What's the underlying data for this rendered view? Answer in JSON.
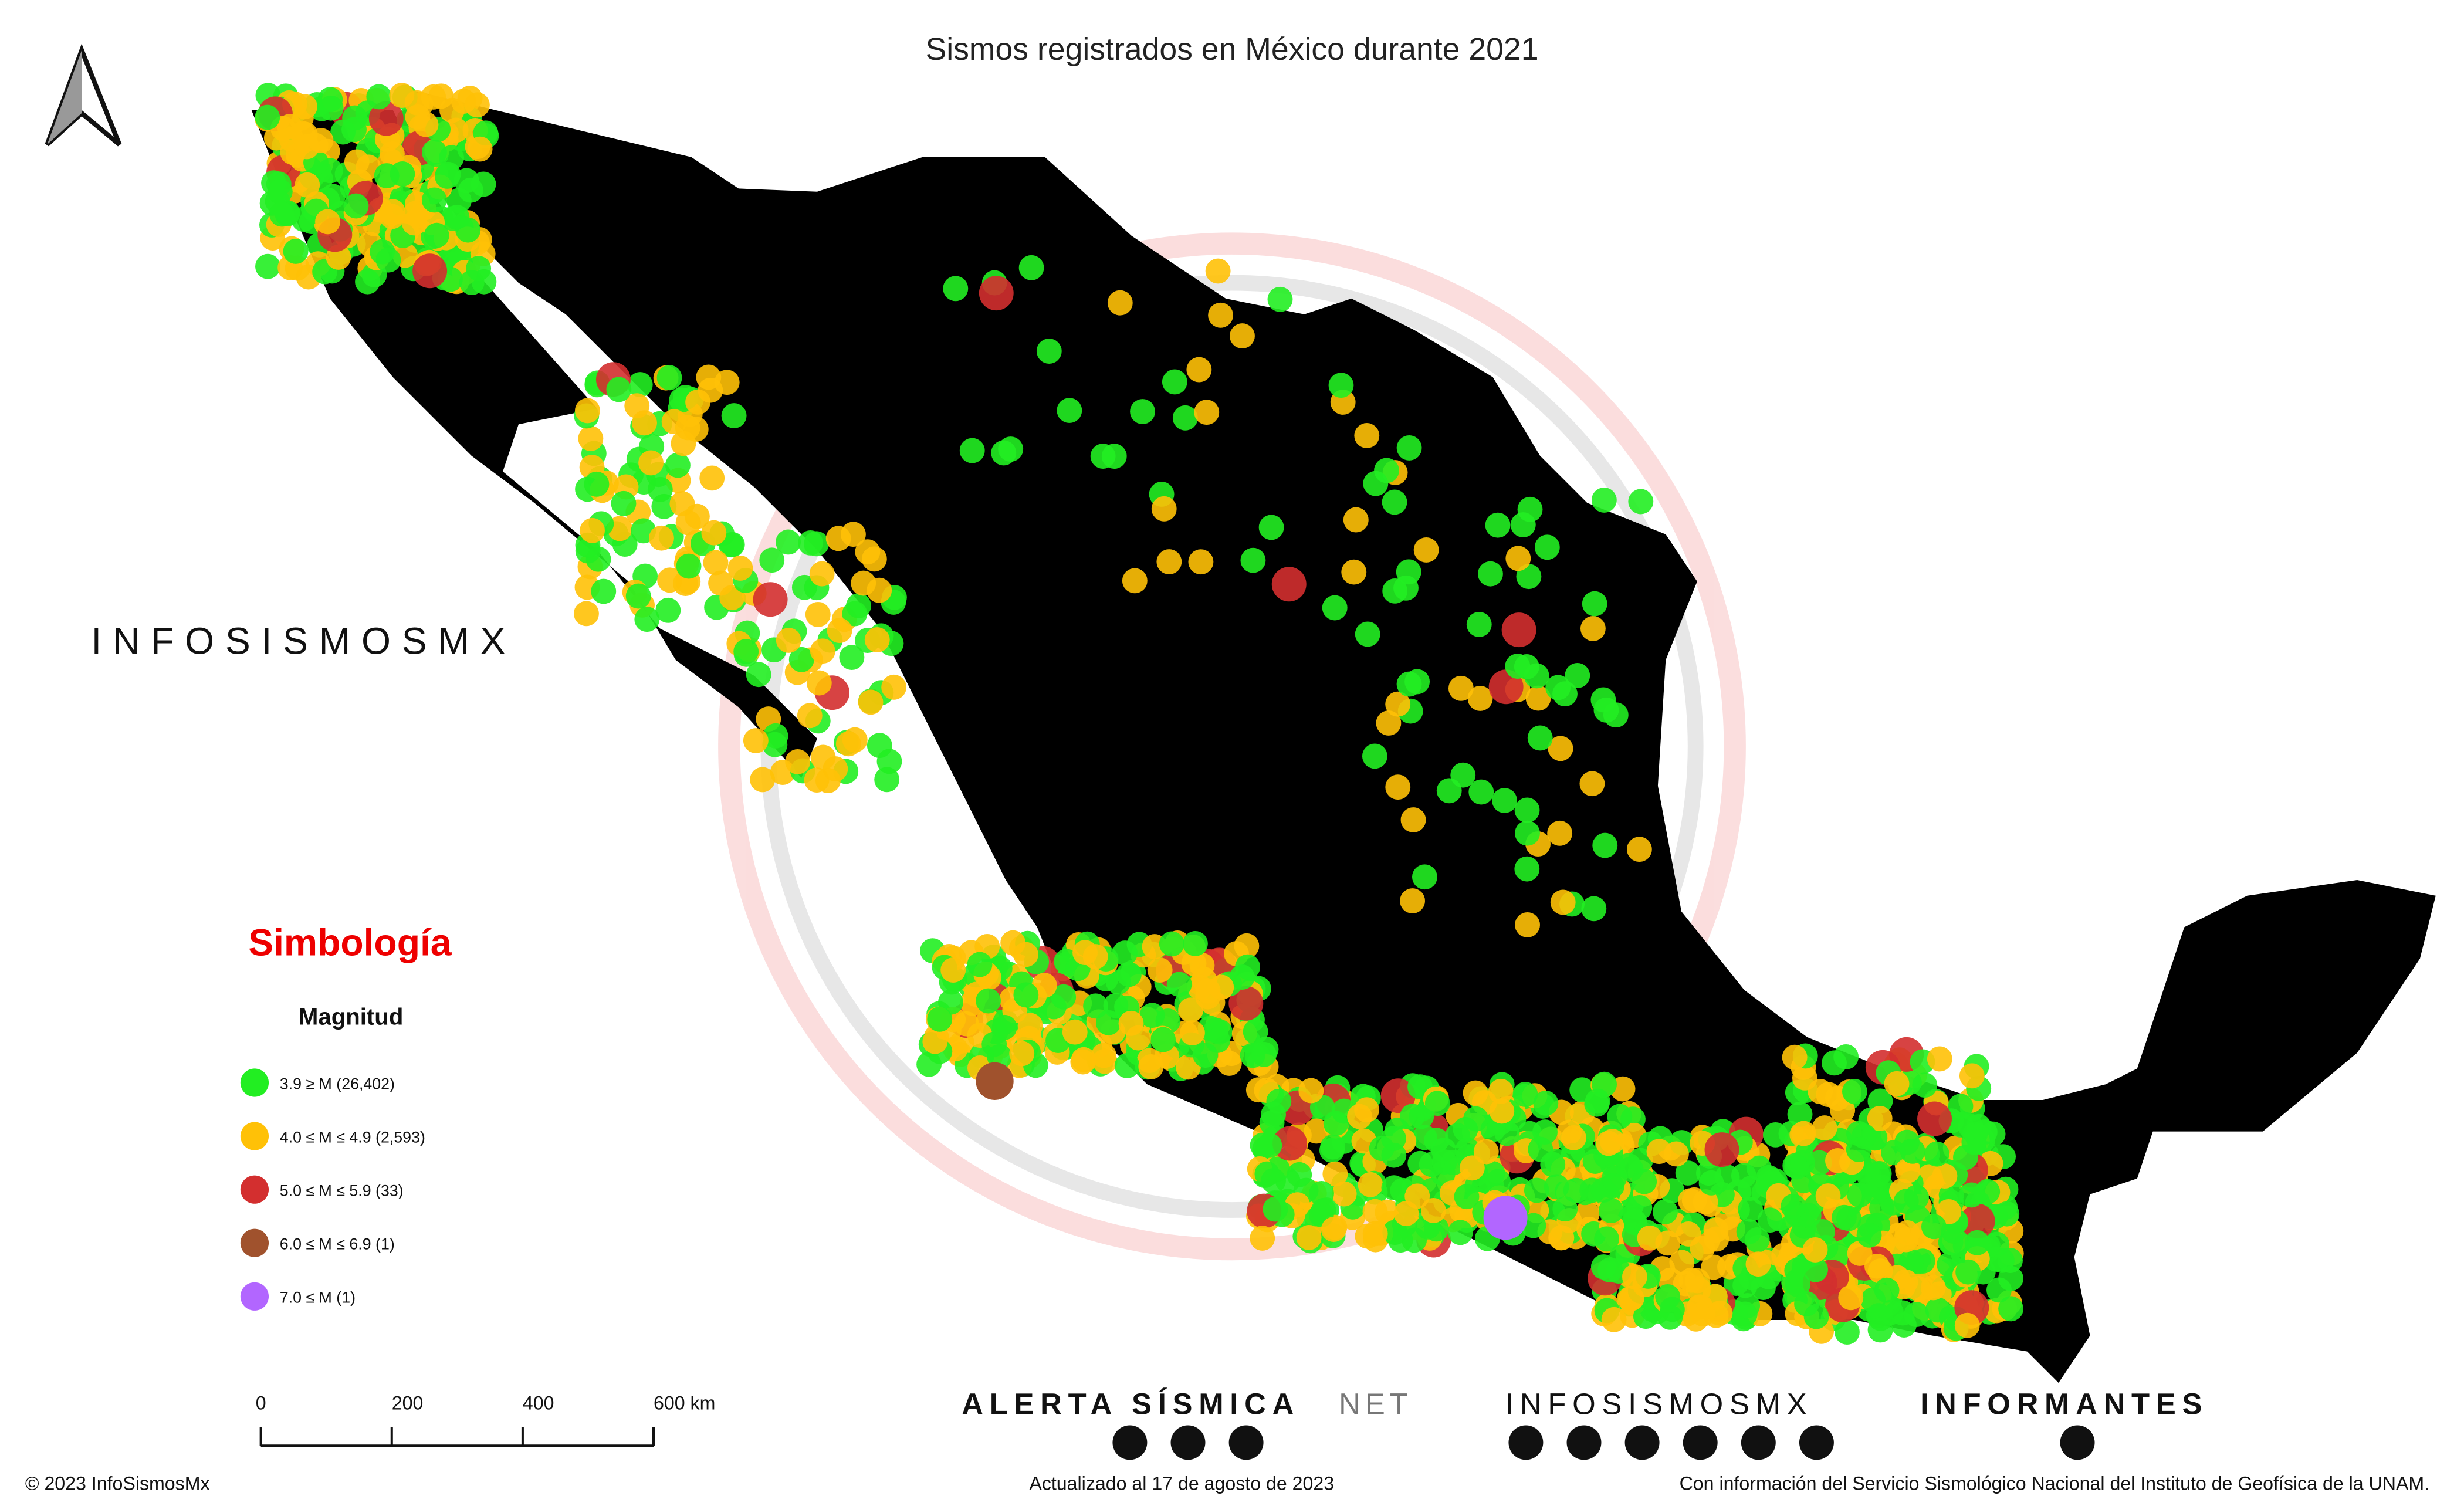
{
  "title": "Sismos registrados en México durante 2021",
  "brand": "INFOSISMOSMX",
  "legend": {
    "title": "Simbología",
    "subtitle": "Magnitud",
    "items": [
      {
        "label": "3.9 ≥ M (26,402)",
        "color": "#22ee22"
      },
      {
        "label": "4.0 ≤ M ≤ 4.9 (2,593)",
        "color": "#ffc107"
      },
      {
        "label": "5.0 ≤ M ≤ 5.9 (33)",
        "color": "#d32f2f"
      },
      {
        "label": "6.0 ≤ M ≤ 6.9 (1)",
        "color": "#a0522d"
      },
      {
        "label": "7.0 ≤ M (1)",
        "color": "#b266ff"
      }
    ]
  },
  "scale_bar": [
    "0",
    "200",
    "400",
    "600 km"
  ],
  "logos": {
    "alerta": "ALERTA SÍSMICA",
    "alerta_suffix": "NET",
    "infosismos": "INFOSISMOSMX",
    "informantes": "INFORMANTES"
  },
  "footer": {
    "left": "© 2023 InfoSismosMx",
    "center": "Actualizado al 17 de agosto de 2023",
    "right": "Con información del Servicio Sismológico Nacional del Instituto de Geofísica de la UNAM."
  }
}
